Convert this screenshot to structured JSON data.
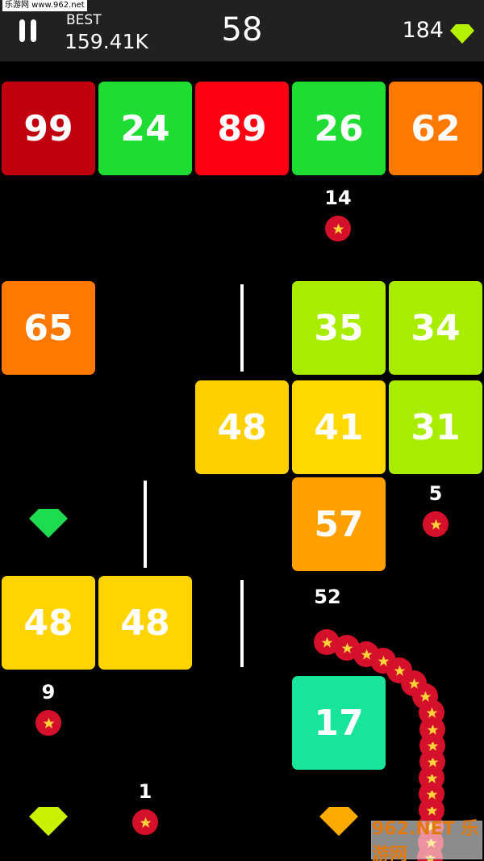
{
  "hud": {
    "best_label": "BEST",
    "best_value": "159.41K",
    "score": "58",
    "gems": "184",
    "gem_color": "#b4f000"
  },
  "watermarks": {
    "top": "乐游网 www.962.net",
    "bottom": "962.NET 乐游网"
  },
  "blocks": [
    {
      "value": "99",
      "color": "#c0000f"
    },
    {
      "value": "24",
      "color": "#1edc32"
    },
    {
      "value": "89",
      "color": "#ff0012"
    },
    {
      "value": "26",
      "color": "#1edc32"
    },
    {
      "value": "62",
      "color": "#ff7800"
    },
    {
      "value": "65",
      "color": "#ff7800"
    },
    {
      "value": "35",
      "color": "#a8ec00"
    },
    {
      "value": "34",
      "color": "#a8ec00"
    },
    {
      "value": "48",
      "color": "#ffd000"
    },
    {
      "value": "41",
      "color": "#ffd800"
    },
    {
      "value": "31",
      "color": "#a8ec00"
    },
    {
      "value": "57",
      "color": "#ffa000"
    },
    {
      "value": "48",
      "color": "#ffd400"
    },
    {
      "value": "48",
      "color": "#ffd400"
    },
    {
      "value": "17",
      "color": "#18e49a"
    }
  ],
  "food": [
    {
      "value": "14"
    },
    {
      "value": "5"
    },
    {
      "value": "9"
    },
    {
      "value": "1"
    }
  ],
  "pickup_gems": [
    {
      "color": "#1edc50"
    },
    {
      "color": "#c8f000"
    },
    {
      "color": "#ffaa00"
    }
  ],
  "snake": {
    "length": "52",
    "color": "#d4102a",
    "star_color": "#ffd23a"
  }
}
